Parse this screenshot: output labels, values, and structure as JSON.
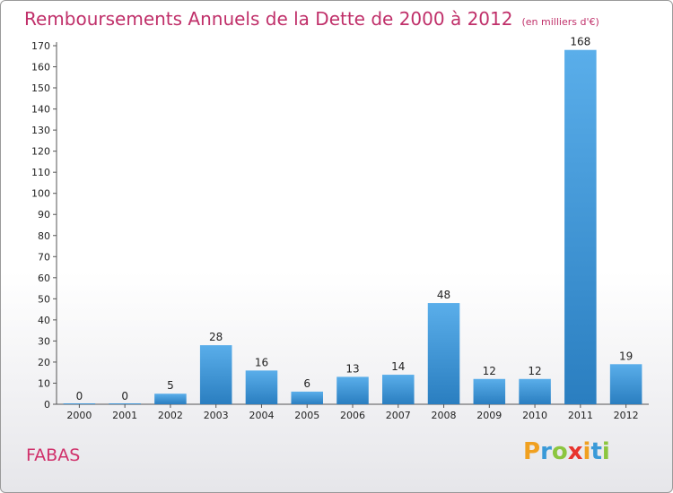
{
  "header": {
    "title": "Remboursements Annuels de la Dette de 2000 à 2012",
    "unit": "(en milliers d'€)"
  },
  "commune": "FABAS",
  "logo": {
    "letters": [
      "P",
      "r",
      "o",
      "x",
      "i",
      "t",
      "i"
    ],
    "colors": [
      "#f0a020",
      "#3a9ad8",
      "#8cc63f",
      "#e8342e",
      "#f0a020",
      "#3a9ad8",
      "#8cc63f"
    ]
  },
  "chart_data": {
    "type": "bar",
    "title": "Remboursements Annuels de la Dette de 2000 à 2012",
    "categories": [
      "2000",
      "2001",
      "2002",
      "2003",
      "2004",
      "2005",
      "2006",
      "2007",
      "2008",
      "2009",
      "2010",
      "2011",
      "2012"
    ],
    "values": [
      0,
      0,
      5,
      28,
      16,
      6,
      13,
      14,
      48,
      12,
      12,
      168,
      19
    ],
    "ylim": [
      0,
      170
    ],
    "yticks": [
      0,
      10,
      20,
      30,
      40,
      50,
      60,
      70,
      80,
      90,
      100,
      110,
      120,
      130,
      140,
      150,
      160,
      170
    ],
    "grid": false,
    "bar_color": "#3d95d8"
  }
}
